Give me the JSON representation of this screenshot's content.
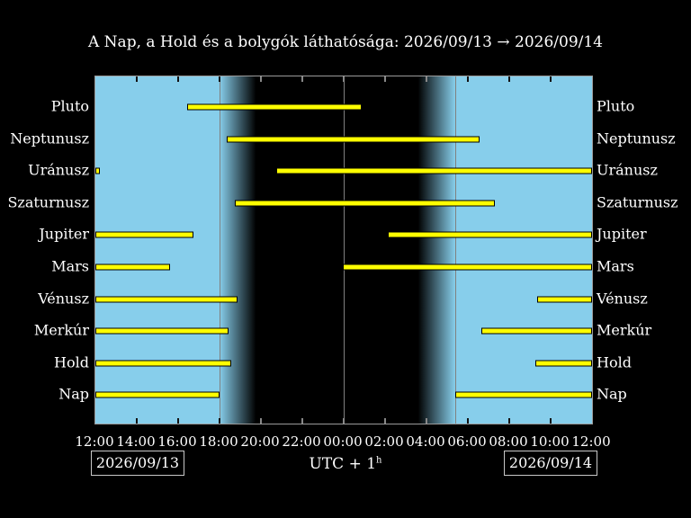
{
  "title": "A Nap, a Hold és a bolygók láthatósága: 2026/09/13 → 2026/09/14",
  "footer": {
    "date_left": "2026/09/13",
    "date_right": "2026/09/14",
    "utc_label": "UTC + 1",
    "utc_sup": "h"
  },
  "colors": {
    "background": "#000000",
    "day_sky": "#87CEEB",
    "bar_fill": "#FFFF00",
    "bar_outline": "#000000",
    "text": "#FFFFFF",
    "plot_border": "#9A9A9A",
    "grid_line": "#808080",
    "tick_on_day": "#111111",
    "tick_on_night": "#888888"
  },
  "chart_data": {
    "type": "gantt",
    "title": "A Nap, a Hold és a bolygók láthatósága: 2026/09/13 → 2026/09/14",
    "x_axis": {
      "tick_labels": [
        "12:00",
        "14:00",
        "16:00",
        "18:00",
        "20:00",
        "22:00",
        "00:00",
        "02:00",
        "04:00",
        "06:00",
        "08:00",
        "10:00",
        "12:00"
      ],
      "hours_total": 24,
      "tick_step_hours": 2,
      "origin": "12:00 on 2026/09/13, hours measured from 12:00, timezone UTC+1"
    },
    "day_regions_hours": [
      [
        0,
        6.0
      ],
      [
        17.4,
        24
      ]
    ],
    "twilight_regions_hours": [
      [
        6.0,
        7.9
      ],
      [
        15.45,
        17.4
      ]
    ],
    "event_lines_hours": [
      6.0,
      12.0,
      17.4
    ],
    "rows": [
      {
        "name": "Pluto",
        "intervals": [
          [
            4.45,
            12.85
          ]
        ],
        "times": [
          "16:27–00:51"
        ]
      },
      {
        "name": "Neptunusz",
        "intervals": [
          [
            6.35,
            18.55
          ]
        ],
        "times": [
          "18:21–06:33"
        ]
      },
      {
        "name": "Uránusz",
        "intervals": [
          [
            0,
            0.2
          ],
          [
            8.75,
            24
          ]
        ],
        "times": [
          "12:00–12:12",
          "20:45–12:00"
        ]
      },
      {
        "name": "Szaturnusz",
        "intervals": [
          [
            6.75,
            19.3
          ]
        ],
        "times": [
          "18:45–07:18"
        ]
      },
      {
        "name": "Jupiter",
        "intervals": [
          [
            0,
            4.75
          ],
          [
            14.15,
            24
          ]
        ],
        "times": [
          "12:00–16:45",
          "02:09–12:00"
        ]
      },
      {
        "name": "Mars",
        "intervals": [
          [
            0,
            3.6
          ],
          [
            11.95,
            24
          ]
        ],
        "times": [
          "12:00–15:36",
          "23:57–12:00"
        ]
      },
      {
        "name": "Vénusz",
        "intervals": [
          [
            0,
            6.85
          ],
          [
            21.35,
            24
          ]
        ],
        "times": [
          "12:00–18:51",
          "09:21–12:00"
        ]
      },
      {
        "name": "Merkúr",
        "intervals": [
          [
            0,
            6.45
          ],
          [
            18.65,
            24
          ]
        ],
        "times": [
          "12:00–18:27",
          "06:39–12:00"
        ]
      },
      {
        "name": "Hold",
        "intervals": [
          [
            0,
            6.55
          ],
          [
            21.25,
            24
          ]
        ],
        "times": [
          "12:00–18:33",
          "09:15–12:00"
        ]
      },
      {
        "name": "Nap",
        "intervals": [
          [
            0,
            6.0
          ],
          [
            17.4,
            24
          ]
        ],
        "times": [
          "12:00–18:00",
          "05:24–12:00"
        ]
      }
    ]
  }
}
